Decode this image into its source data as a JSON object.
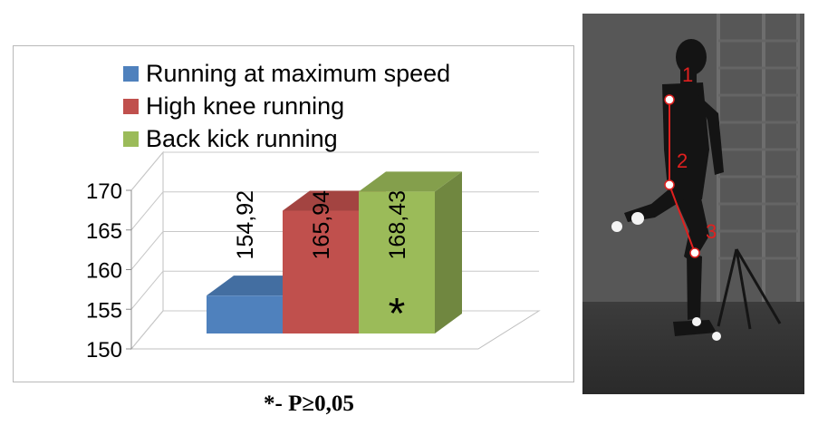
{
  "chart_data": {
    "type": "bar",
    "categories": [
      "Running at maximum speed",
      "High knee running",
      "Back kick running"
    ],
    "values": [
      154.92,
      165.94,
      168.43
    ],
    "data_labels": [
      "154,92",
      "165,94",
      "168,43"
    ],
    "significance_marker": [
      "",
      "",
      "*"
    ],
    "colors": [
      "#4f81bd",
      "#c0504d",
      "#9bbb59"
    ],
    "yticks": [
      "150",
      "155",
      "160",
      "165",
      "170"
    ],
    "ylim": [
      150,
      170
    ],
    "legend_position": "top",
    "grid": true,
    "style": "3d"
  },
  "footnote": "*- P≥0,05",
  "photo": {
    "joint_labels": [
      "1",
      "2",
      "3"
    ]
  }
}
